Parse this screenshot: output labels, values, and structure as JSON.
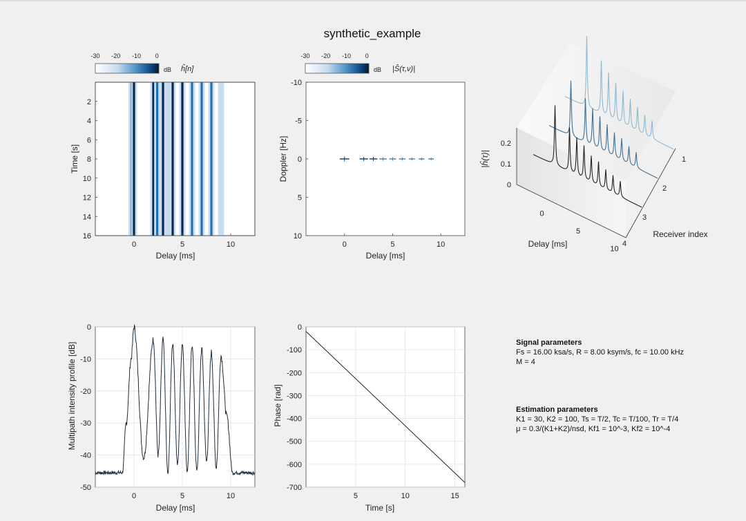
{
  "figure": {
    "title": "synthetic_example"
  },
  "colorbars": {
    "ticks": [
      "-30",
      "-20",
      "-10",
      "0"
    ],
    "unit": "dB",
    "left_label": "ĥ[n]",
    "mid_label": "|Ŝ(τ,ν)|"
  },
  "chart_data": [
    {
      "id": "impulse-response-image",
      "type": "heatmap",
      "xlabel": "Delay [ms]",
      "ylabel": "Time [s]",
      "xlim": [
        -4,
        12.5
      ],
      "ylim": [
        0,
        16
      ],
      "xticks": [
        0,
        5,
        10
      ],
      "yticks": [
        2,
        4,
        6,
        8,
        10,
        12,
        14,
        16
      ],
      "path_delays_ms": [
        -0.25,
        0.0,
        2.0,
        2.4,
        3.0,
        3.5,
        4.0,
        5.0,
        6.0,
        7.0,
        8.0,
        9.0
      ],
      "path_strengths": [
        0.7,
        1.0,
        0.85,
        0.7,
        0.8,
        0.6,
        0.85,
        0.8,
        0.75,
        0.7,
        0.65,
        0.6
      ]
    },
    {
      "id": "scattering-function",
      "type": "scatter",
      "xlabel": "Delay [ms]",
      "ylabel": "Doppler [Hz]",
      "xlim": [
        -4,
        12.5
      ],
      "ylim": [
        -10,
        10
      ],
      "xticks": [
        0,
        5,
        10
      ],
      "yticks": [
        -10,
        -5,
        0,
        5,
        10
      ],
      "ytick_labels": [
        "-10",
        "-5",
        "0",
        "5",
        "10"
      ],
      "x": [
        0,
        2,
        3,
        4,
        5,
        6,
        7,
        8,
        9
      ],
      "y": [
        0,
        0,
        0,
        0,
        0,
        0,
        0,
        0,
        0
      ],
      "intensity": [
        1.0,
        0.8,
        0.75,
        0.7,
        0.6,
        0.55,
        0.5,
        0.45,
        0.4
      ]
    },
    {
      "id": "receiver-waterfall",
      "type": "line",
      "xlabel": "Delay [ms]",
      "ylabel": "|ĥ(τ)|",
      "zlabel": "Receiver index",
      "xticks": [
        0,
        5,
        10
      ],
      "zticks": [
        0,
        0.1,
        0.2
      ],
      "ztick_labels": [
        "0",
        "0.1",
        "0.2"
      ],
      "receiver_ticks": [
        1,
        2,
        3,
        4
      ],
      "peak_delays_ms": [
        0,
        2,
        3,
        4,
        5,
        6,
        7,
        8,
        9
      ],
      "series": [
        {
          "name": "Receiver 1",
          "color": "#8fb9d3",
          "peaks": [
            0.32,
            0.24,
            0.2,
            0.17,
            0.15,
            0.13,
            0.11,
            0.09,
            0.08
          ]
        },
        {
          "name": "Receiver 2",
          "color": "#3f6f94",
          "peaks": [
            0.25,
            0.2,
            0.17,
            0.15,
            0.13,
            0.11,
            0.1,
            0.08,
            0.07
          ]
        },
        {
          "name": "Receiver 3",
          "color": "#222222",
          "peaks": [
            0.27,
            0.2,
            0.17,
            0.15,
            0.12,
            0.11,
            0.09,
            0.08,
            0.07
          ]
        }
      ]
    },
    {
      "id": "multipath-intensity-profile",
      "type": "line",
      "xlabel": "Delay [ms]",
      "ylabel": "Multipath intensity profile [dB]",
      "xlim": [
        -4,
        12.5
      ],
      "ylim": [
        -50,
        0
      ],
      "xticks": [
        0,
        5,
        10
      ],
      "yticks": [
        0,
        -10,
        -20,
        -30,
        -40,
        -50
      ],
      "noise_floor_db": -45.5,
      "peaks": [
        {
          "delay": -0.3,
          "db": -10
        },
        {
          "delay": 0.0,
          "db": 0
        },
        {
          "delay": 2.0,
          "db": -4
        },
        {
          "delay": 3.0,
          "db": -4
        },
        {
          "delay": 4.0,
          "db": -5
        },
        {
          "delay": 5.0,
          "db": -5
        },
        {
          "delay": 6.0,
          "db": -6
        },
        {
          "delay": 7.0,
          "db": -7
        },
        {
          "delay": 8.0,
          "db": -8
        },
        {
          "delay": 9.0,
          "db": -9
        }
      ],
      "notches": [
        {
          "delay": 1.0,
          "db": -41
        },
        {
          "delay": 2.5,
          "db": -40
        },
        {
          "delay": 3.5,
          "db": -46
        },
        {
          "delay": 4.5,
          "db": -43
        },
        {
          "delay": 5.5,
          "db": -45
        },
        {
          "delay": 6.5,
          "db": -45
        },
        {
          "delay": 7.5,
          "db": -42
        },
        {
          "delay": 8.5,
          "db": -44
        }
      ]
    },
    {
      "id": "phase-plot",
      "type": "line",
      "xlabel": "Time [s]",
      "ylabel": "Phase [rad]",
      "xlim": [
        0,
        16
      ],
      "ylim": [
        -700,
        0
      ],
      "xticks": [
        5,
        10,
        15
      ],
      "yticks": [
        0,
        -100,
        -200,
        -300,
        -400,
        -500,
        -600,
        -700
      ],
      "x": [
        0,
        16
      ],
      "y": [
        -20,
        -680
      ]
    }
  ],
  "signal_parameters": {
    "heading": "Signal parameters",
    "line1": "Fs = 16.00 ksa/s, R = 8.00 ksym/s, fc = 10.00 kHz",
    "line2": "M = 4"
  },
  "estimation_parameters": {
    "heading": "Estimation parameters",
    "line1": "K1 = 30, K2 = 100, Ts = T/2, Tc = T/100, Tr = T/4",
    "line2": "μ = 0.3/(K1+K2)/nsd, Kf1 = 10^-3, Kf2 = 10^-4"
  }
}
